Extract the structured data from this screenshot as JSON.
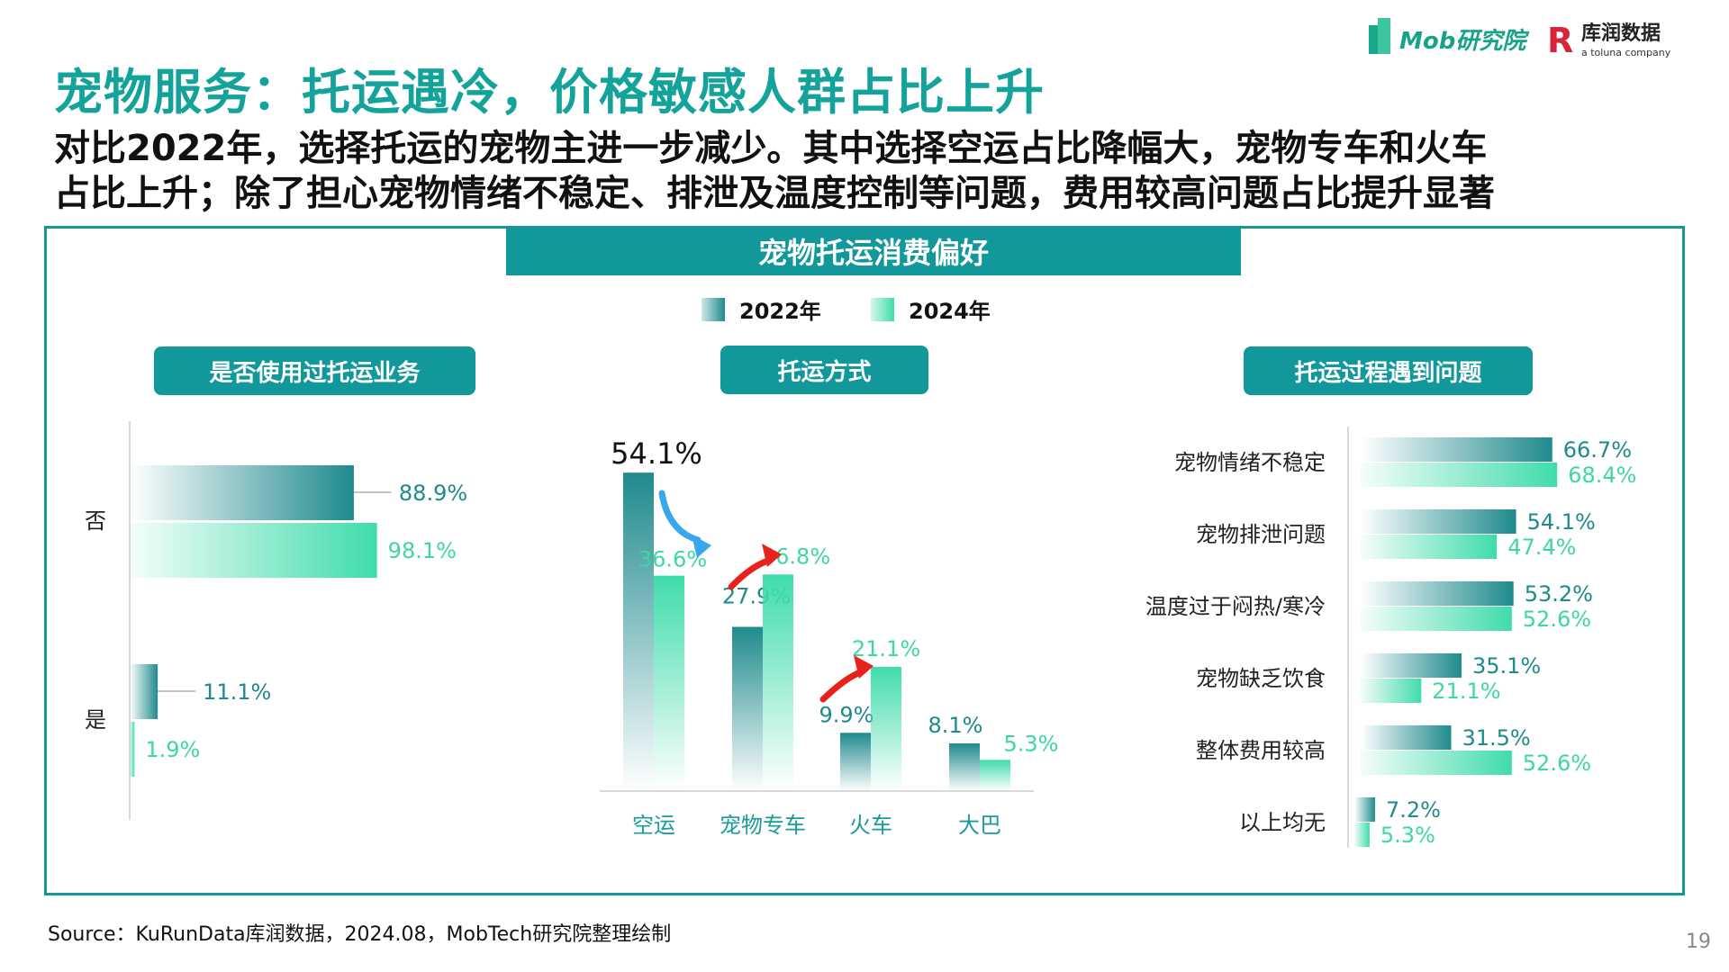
{
  "header": {
    "title": "宠物服务：托运遇冷，价格敏感人群占比上升",
    "subtitle_lines": [
      "对比2022年，选择托运的宠物主进一步减少。其中选择空运占比降幅大，宠物专车和火车",
      "占比上升；除了担心宠物情绪不稳定、排泄及温度控制等问题，费用较高问题占比提升显著"
    ],
    "logo_text": [
      "Mob研究院",
      "库润数据",
      "a toluna company"
    ]
  },
  "panel": {
    "title": "宠物托运消费偏好",
    "legend": [
      "2022年",
      "2024年"
    ],
    "colors": {
      "y2022": "#1f8a8d",
      "y2024": "#3fdcab",
      "accent": "#12989a"
    }
  },
  "chart_data": [
    {
      "type": "bar",
      "orientation": "horizontal",
      "title": "是否使用过托运业务",
      "categories": [
        "否",
        "是"
      ],
      "series": [
        {
          "name": "2022年",
          "values": [
            88.9,
            11.1
          ]
        },
        {
          "name": "2024年",
          "values": [
            98.1,
            1.9
          ]
        }
      ],
      "labels": [
        [
          "88.9%",
          "11.1%"
        ],
        [
          "98.1%",
          "1.9%"
        ]
      ]
    },
    {
      "type": "bar",
      "orientation": "vertical",
      "title": "托运方式",
      "categories": [
        "空运",
        "宠物专车",
        "火车",
        "大巴"
      ],
      "series": [
        {
          "name": "2022年",
          "values": [
            54.1,
            27.9,
            9.9,
            8.1
          ]
        },
        {
          "name": "2024年",
          "values": [
            36.6,
            36.8,
            21.1,
            5.3
          ]
        }
      ],
      "labels": [
        [
          "54.1%",
          "27.9%",
          "9.9%",
          "8.1%"
        ],
        [
          "36.6%",
          "36.8%",
          "21.1%",
          "5.3%"
        ]
      ],
      "annotations": [
        {
          "category": "空运",
          "direction": "down",
          "color": "#3aa6ec"
        },
        {
          "category": "宠物专车",
          "direction": "up",
          "color": "#e8221a"
        },
        {
          "category": "火车",
          "direction": "up",
          "color": "#e8221a"
        }
      ]
    },
    {
      "type": "bar",
      "orientation": "horizontal",
      "title": "托运过程遇到问题",
      "categories": [
        "宠物情绪不稳定",
        "宠物排泄问题",
        "温度过于闷热/寒冷",
        "宠物缺乏饮食",
        "整体费用较高",
        "以上均无"
      ],
      "series": [
        {
          "name": "2022年",
          "values": [
            66.7,
            54.1,
            53.2,
            35.1,
            31.5,
            7.2
          ]
        },
        {
          "name": "2024年",
          "values": [
            68.4,
            47.4,
            52.6,
            21.1,
            52.6,
            5.3
          ]
        }
      ],
      "labels": [
        [
          "66.7%",
          "54.1%",
          "53.2%",
          "35.1%",
          "31.5%",
          "7.2%"
        ],
        [
          "68.4%",
          "47.4%",
          "52.6%",
          "21.1%",
          "52.6%",
          "5.3%"
        ]
      ]
    }
  ],
  "footer": {
    "source": "Source：KuRunData库润数据，2024.08，MobTech研究院整理绘制",
    "page": "19"
  }
}
